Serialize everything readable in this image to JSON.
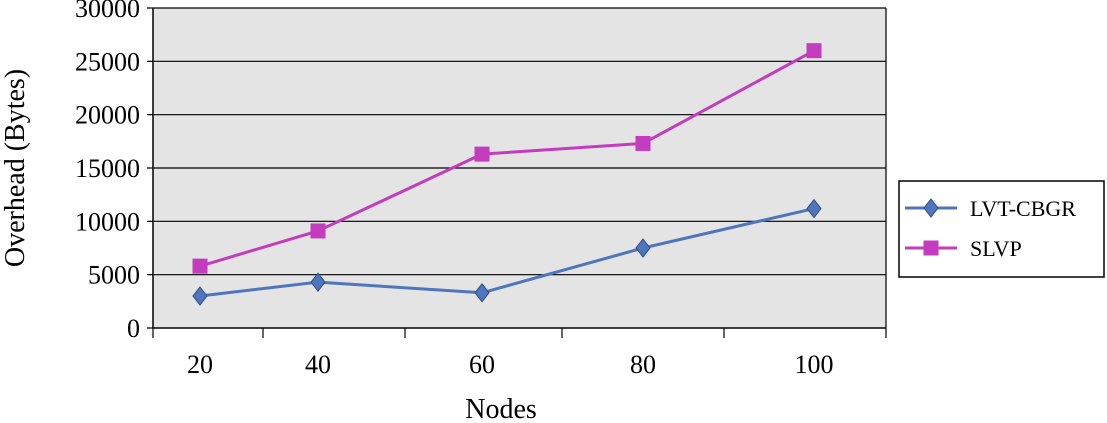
{
  "chart_data": {
    "type": "line",
    "xlabel": "Nodes",
    "ylabel": "Overhead (Bytes)",
    "categories": [
      "20",
      "40",
      "60",
      "80",
      "100"
    ],
    "ylim": [
      0,
      30000
    ],
    "yticks": [
      "0",
      "5000",
      "10000",
      "15000",
      "20000",
      "25000",
      "30000"
    ],
    "grid": true,
    "legend_position": "right",
    "series": [
      {
        "name": "LVT-CBGR",
        "values": [
          3000,
          4300,
          3300,
          7500,
          11200
        ],
        "color": "#4f75bd",
        "marker": "diamond"
      },
      {
        "name": "SLVP",
        "values": [
          5800,
          9100,
          16300,
          17300,
          26000
        ],
        "color": "#c33cbd",
        "marker": "square"
      }
    ]
  }
}
